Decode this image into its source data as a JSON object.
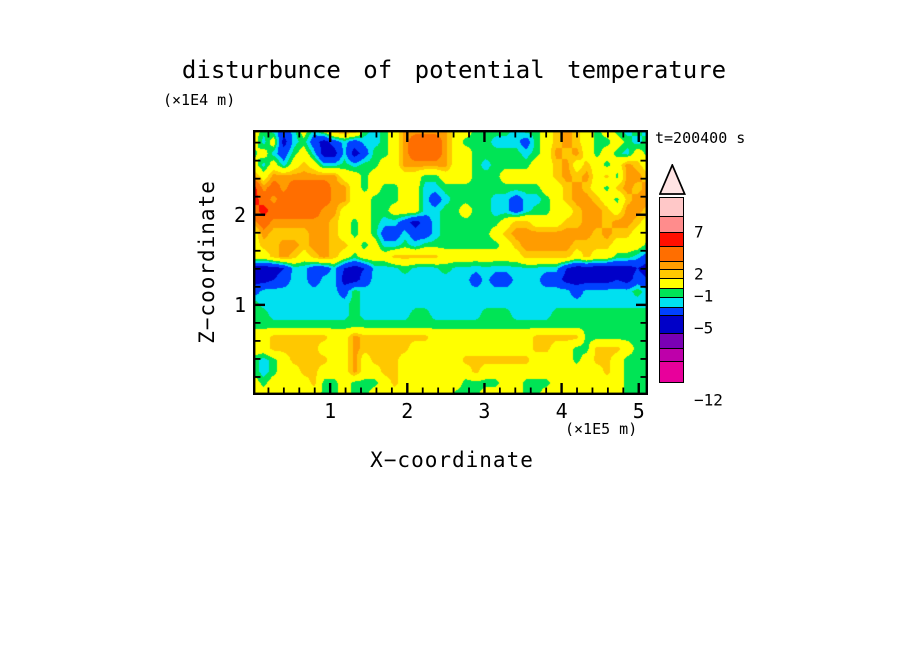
{
  "title": "disturbunce of potential temperature",
  "timestamp_label": "t=200400 s",
  "axes": {
    "x": {
      "title": "X−coordinate",
      "unit_label": "(×1E5 m)",
      "tick_labels": [
        "1",
        "2",
        "3",
        "4",
        "5"
      ],
      "tick_values": [
        1,
        2,
        3,
        4,
        5
      ],
      "range": [
        0,
        5.12
      ],
      "minor_step": 0.2
    },
    "z": {
      "title": "Z−coordinate",
      "unit_label": "(×1E4 m)",
      "tick_labels": [
        "1",
        "2"
      ],
      "tick_values": [
        1,
        2
      ],
      "range": [
        0,
        2.94
      ],
      "minor_step": 0.2
    }
  },
  "legend": {
    "arrow_color": "#FFE3E3",
    "segments": [
      {
        "color": "#FFC8C8",
        "height": 20
      },
      {
        "color": "#FF8C8C",
        "height": 18
      },
      {
        "color": "#FF0F00",
        "height": 15
      },
      {
        "color": "#FF6E00",
        "height": 17
      },
      {
        "color": "#FF9C00",
        "height": 10
      },
      {
        "color": "#FFC800",
        "height": 10
      },
      {
        "color": "#FFFF00",
        "height": 12
      },
      {
        "color": "#00E455",
        "height": 10
      },
      {
        "color": "#00E0F0",
        "height": 12
      },
      {
        "color": "#0041FF",
        "height": 10
      },
      {
        "color": "#0000C8",
        "height": 19
      },
      {
        "color": "#7A00B4",
        "height": 17
      },
      {
        "color": "#BE00AA",
        "height": 14
      },
      {
        "color": "#E8009B",
        "height": 22
      }
    ],
    "labels": [
      {
        "text": "7",
        "after_segment": 2
      },
      {
        "text": "2",
        "after_segment": 5
      },
      {
        "text": "−1",
        "after_segment": 7
      },
      {
        "text": "−5",
        "after_segment": 10
      },
      {
        "text": "−12",
        "after_segment": 14
      }
    ]
  },
  "chart_data": {
    "type": "filled_contour",
    "title": "disturbunce of potential temperature",
    "xlabel": "X−coordinate (×1E5 m)",
    "ylabel": "Z−coordinate (×1E4 m)",
    "annotation": "t=200400 s",
    "x_range": [
      0,
      5.12
    ],
    "z_range": [
      0,
      2.94
    ],
    "colorbar_labeled_levels": [
      7,
      2,
      -1,
      -5,
      -12
    ],
    "level_thresholds": [
      10,
      7,
      5,
      3,
      2,
      1,
      -1,
      -2,
      -3,
      -5,
      -7,
      -9,
      -10
    ],
    "level_colors": [
      "#FFC8C8",
      "#FF8C8C",
      "#FF0F00",
      "#FF6E00",
      "#FF9C00",
      "#FFC800",
      "#FFFF00",
      "#00E455",
      "#00E0F0",
      "#0041FF",
      "#0000C8",
      "#7A00B4",
      "#BE00AA",
      "#E8009B"
    ],
    "grid": {
      "cols": 40,
      "rows": 24,
      "orientation": "row 0 = top of plot (z = z_range max), col 0 = x = 0",
      "values": [
        [
          0,
          -1.5,
          -2.5,
          -4,
          -2.5,
          0,
          -2.5,
          0,
          2.5,
          2.5,
          2.5,
          -1.5,
          -2.5,
          -1.5,
          0,
          2.5,
          2.5,
          2.5,
          2.5,
          2.5,
          0,
          0,
          -1.5,
          -1.5,
          -1.5,
          -1.5,
          -2.5,
          -1.5,
          -1.5,
          0,
          1.5,
          2.5,
          1.5,
          0,
          -1.5,
          0,
          -1.5,
          -2.5,
          -1.5,
          -2.5
        ],
        [
          0,
          -2.5,
          0,
          -6,
          -2.5,
          -1.5,
          -4,
          -6,
          -4,
          -2.5,
          -4,
          -2.5,
          -2.5,
          -1.5,
          0,
          2.5,
          4,
          4,
          4,
          2.5,
          0,
          -1.5,
          -1.5,
          -1.5,
          -2.5,
          -2.5,
          -2.5,
          -4,
          -1.5,
          0,
          1.5,
          2.5,
          1.5,
          0,
          -1.5,
          -1.5,
          0,
          -1.5,
          -2.5,
          -1.5
        ],
        [
          -1.5,
          0,
          -2.5,
          -4,
          -1.5,
          0,
          -2.5,
          -6,
          -6,
          -2.5,
          -6,
          -4,
          -1.5,
          -1.5,
          0,
          2.5,
          4,
          4,
          4,
          2.5,
          0,
          0,
          -1.5,
          -1.5,
          -1.5,
          -1.5,
          -1.5,
          -2.5,
          -1.5,
          0,
          2.5,
          1.5,
          2.5,
          0,
          -1.5,
          0,
          -1.5,
          -2.5,
          0,
          -1.5
        ],
        [
          0,
          -2.5,
          0,
          -2.5,
          0,
          1.5,
          0,
          -2.5,
          -2.5,
          -1.5,
          -2.5,
          -1.5,
          -1.5,
          0,
          0,
          2.5,
          2.5,
          2.5,
          2.5,
          2.5,
          0,
          0,
          -1.5,
          -2.5,
          -1.5,
          -1.5,
          -1.5,
          -1.5,
          0,
          0,
          1.5,
          2.5,
          0,
          1.5,
          0,
          -1.5,
          0,
          2.5,
          1.5,
          0
        ],
        [
          2.5,
          0,
          2.5,
          2.5,
          2.5,
          2.5,
          2.5,
          2.5,
          2.5,
          0,
          0,
          -1.5,
          0,
          0,
          0,
          0,
          0,
          -1.5,
          -1.5,
          0,
          0,
          0,
          -1.5,
          -1.5,
          -1.5,
          0,
          0,
          0,
          0,
          0,
          1.5,
          2.5,
          1.5,
          2.5,
          0,
          1.5,
          -1.5,
          2.5,
          2.5,
          1.5
        ],
        [
          6,
          2.5,
          4,
          2.5,
          4,
          4,
          4,
          4,
          2.5,
          2.5,
          0,
          -1.5,
          0,
          -1.5,
          -1.5,
          0,
          0,
          -2.5,
          -2.5,
          -1.5,
          -1.5,
          -1.5,
          -1.5,
          -1.5,
          -1.5,
          -1.5,
          -1.5,
          -1.5,
          -1.5,
          0,
          0,
          1.5,
          2.5,
          1.5,
          0,
          -1.5,
          1.5,
          2.5,
          1.5,
          2.5
        ],
        [
          6,
          4,
          2.5,
          4,
          4,
          4,
          4,
          4,
          2.5,
          2.5,
          0,
          0,
          -1.5,
          -1.5,
          -1.5,
          0,
          0,
          -2.5,
          -4,
          -2.5,
          -1.5,
          -1.5,
          -1.5,
          -1.5,
          -2.5,
          -2.5,
          -4,
          -2.5,
          -2.5,
          -1.5,
          0,
          1.5,
          2.5,
          2.5,
          1.5,
          0,
          -1.5,
          1.5,
          2.5,
          2.5
        ],
        [
          4,
          6,
          4,
          4,
          4,
          4,
          4,
          2.5,
          2.5,
          0,
          0,
          0,
          -1.5,
          -1.5,
          0,
          0,
          0,
          -2.5,
          -2.5,
          -1.5,
          -1.5,
          0,
          -1.5,
          -1.5,
          -2.5,
          -2.5,
          -4,
          -2.5,
          -1.5,
          -1.5,
          0,
          0,
          1.5,
          2.5,
          2.5,
          1.5,
          0,
          2.5,
          2.5,
          1.5
        ],
        [
          2.5,
          4,
          2.5,
          2.5,
          2.5,
          2.5,
          2.5,
          2.5,
          1.5,
          0,
          -1.5,
          0,
          -1.5,
          -2.5,
          -2.5,
          -4,
          -6,
          -4,
          -2.5,
          -1.5,
          -1.5,
          -1.5,
          -1.5,
          -1.5,
          -1.5,
          0,
          1.5,
          1.5,
          0,
          0,
          0,
          1.5,
          1.5,
          2.5,
          2.5,
          1.5,
          2.5,
          2.5,
          1.5,
          0
        ],
        [
          0,
          2.5,
          1.5,
          1.5,
          1.5,
          1.5,
          2.5,
          2.5,
          1.5,
          0,
          -1.5,
          0,
          -1.5,
          -4,
          -4,
          -2.5,
          -4,
          -4,
          -2.5,
          -1.5,
          -1.5,
          -1.5,
          -1.5,
          -1.5,
          0,
          1.5,
          2.5,
          2.5,
          2.5,
          2.5,
          2.5,
          2.5,
          2.5,
          2.5,
          1.5,
          2.5,
          1.5,
          1.5,
          0,
          0
        ],
        [
          0,
          1.5,
          1.5,
          2.5,
          2.5,
          1.5,
          2.5,
          2.5,
          1.5,
          1.5,
          0,
          -1.5,
          0,
          -2.5,
          -2.5,
          -1.5,
          -2.5,
          -1.5,
          -1.5,
          -1.5,
          -1.5,
          -1.5,
          -1.5,
          -1.5,
          -1.5,
          0,
          1.5,
          2.5,
          2.5,
          2.5,
          2.5,
          2.5,
          1.5,
          1.5,
          1.5,
          1.5,
          0,
          0,
          0,
          -1.5
        ],
        [
          0,
          0,
          1.5,
          2.5,
          1.5,
          0,
          1.5,
          2.5,
          1.5,
          0,
          -1.5,
          0,
          0,
          0,
          1.5,
          1.5,
          1.5,
          1.5,
          1.5,
          0,
          0,
          0,
          0,
          0,
          0,
          0,
          0,
          1.5,
          1.5,
          1.5,
          1.5,
          1.5,
          0,
          1.5,
          0,
          0,
          -1.5,
          -1.5,
          -2.5,
          -4
        ],
        [
          -6,
          -6,
          -6,
          -5,
          -2.5,
          -2.5,
          -4,
          -4,
          -2.5,
          -5,
          -6,
          -5,
          -2.5,
          -2.5,
          -2.2,
          -1.5,
          -2.2,
          -2.5,
          -2.2,
          -1.5,
          -2.2,
          -2.2,
          -2.5,
          -2.2,
          -2.5,
          -2.5,
          -2.2,
          -2.2,
          -2.2,
          -2.5,
          -2.5,
          -5,
          -6,
          -6,
          -6,
          -6,
          -6,
          -6,
          -5,
          -6
        ],
        [
          -6,
          -6,
          -5,
          -4,
          -2.5,
          -2.5,
          -4,
          -2.5,
          -2.5,
          -6,
          -6,
          -4,
          -2.5,
          -2.5,
          -2.5,
          -2.5,
          -2.5,
          -2.5,
          -2.5,
          -2.5,
          -2.5,
          -2.5,
          -4,
          -2.5,
          -4,
          -4,
          -2.5,
          -2.5,
          -2.5,
          -4,
          -4,
          -6,
          -6,
          -6,
          -6,
          -6,
          -5,
          -6,
          -4,
          -5
        ],
        [
          -4,
          -2.5,
          -2.5,
          -2.5,
          -2.5,
          -2.5,
          -2.5,
          -2.5,
          -2.5,
          -4,
          -1.5,
          -2.5,
          -2.5,
          -2.5,
          -2.5,
          -2.5,
          -2.5,
          -2.5,
          -2.5,
          -2.5,
          -2.5,
          -2.5,
          -2.5,
          -2.5,
          -2.5,
          -2.5,
          -2.5,
          -2.5,
          -2.5,
          -2.5,
          -2.5,
          -2.5,
          -4,
          -2.5,
          -2.5,
          -2.5,
          -2.5,
          -2.5,
          -1.5,
          -2.5
        ],
        [
          -1.5,
          -2.5,
          -2.5,
          -2.5,
          -2.5,
          -2.5,
          -2.5,
          -2.5,
          -2.5,
          -2.5,
          -1.5,
          -2.5,
          -2.5,
          -2.5,
          -2.5,
          -2.5,
          -2.5,
          -2.5,
          -2.5,
          -2.5,
          -2.5,
          -2.5,
          -2.5,
          -2.5,
          -2.5,
          -2.5,
          -2.5,
          -2.5,
          -2.5,
          -2.5,
          -2.5,
          -2.5,
          -2.5,
          -2.5,
          -2.5,
          -2.5,
          -2.5,
          -2.5,
          -2.5,
          -2.5
        ],
        [
          -1.5,
          -1.5,
          -2.5,
          -2.5,
          -2.5,
          -2.5,
          -2.5,
          -2.5,
          -2.5,
          -2.5,
          -1.5,
          -2.5,
          -2.5,
          -2.5,
          -2.5,
          -2.5,
          -1.5,
          -1.5,
          -2.5,
          -2.5,
          -2.5,
          -2.5,
          -2.5,
          -1.5,
          -1.5,
          -1.5,
          -2.5,
          -2.5,
          -2.5,
          -2.5,
          -1.5,
          -1.5,
          -1.5,
          -1.5,
          -1.5,
          -1.5,
          -1.5,
          -1.5,
          -1.5,
          -1.5
        ],
        [
          -1.5,
          -1.5,
          -1.5,
          -1.5,
          -1.5,
          -1.5,
          -1.5,
          -1.5,
          -1.5,
          -1.5,
          -1.5,
          -1.5,
          -1.5,
          -1.5,
          -1.5,
          -1.5,
          -1.5,
          -1.5,
          -1.5,
          -1.5,
          -1.5,
          -1.5,
          -1.5,
          -1.5,
          -1.5,
          -1.5,
          -1.5,
          -1.5,
          -1.5,
          -1.5,
          -1.5,
          -1.5,
          -1.5,
          -1.5,
          -1.5,
          -1.5,
          -1.5,
          -1.5,
          -1.5,
          -1.5
        ],
        [
          0,
          0,
          1.5,
          1.5,
          1.5,
          1.5,
          1.5,
          1.5,
          0,
          0,
          2.5,
          1.5,
          1.5,
          1.5,
          1.5,
          1.5,
          1.5,
          1.5,
          0,
          0,
          0,
          0,
          0,
          0,
          0,
          0,
          0,
          0,
          1.5,
          1.5,
          1.5,
          1.5,
          1.5,
          -1.5,
          -1.5,
          -1.5,
          -1.5,
          -1.5,
          -1.5,
          -1.5
        ],
        [
          0,
          0,
          1.5,
          1.5,
          1.5,
          1.5,
          1.5,
          0,
          0,
          0,
          2.5,
          1.5,
          1.5,
          1.5,
          1.5,
          1.5,
          0,
          0,
          0,
          0,
          0,
          0,
          0,
          0,
          0,
          0,
          0,
          0,
          1.5,
          1.5,
          0,
          0,
          -1.5,
          -1.5,
          1.5,
          1.5,
          1.5,
          0,
          -1.5,
          -1.5
        ],
        [
          -1.5,
          -2.5,
          -1.5,
          0,
          1.5,
          1.5,
          1.5,
          1.5,
          0,
          0,
          2.5,
          0,
          1.5,
          1.5,
          1.5,
          0,
          0,
          0,
          0,
          0,
          0,
          1.5,
          1.5,
          1.5,
          1.5,
          1.5,
          1.5,
          1.5,
          0,
          0,
          0,
          0,
          -1.5,
          0,
          1.5,
          1.5,
          0,
          -1.5,
          -1.5,
          -1.5
        ],
        [
          -1.5,
          -2.5,
          -1.5,
          0,
          0,
          1.5,
          1.5,
          0,
          0,
          0,
          2.5,
          0,
          0,
          1.5,
          1.5,
          0,
          0,
          0,
          0,
          0,
          0,
          0,
          1.5,
          0,
          0,
          0,
          0,
          0,
          0,
          0,
          0,
          0,
          0,
          0,
          0,
          1.5,
          0,
          -1.5,
          -1.5,
          -1.5
        ],
        [
          0,
          -1.5,
          0,
          0,
          0,
          0,
          1.5,
          -1.5,
          -1.5,
          0,
          -1.5,
          -1.5,
          -1.5,
          0,
          1.5,
          0,
          0,
          0,
          0,
          0,
          0,
          -1.5,
          -1.5,
          -1.5,
          -1.5,
          0,
          0,
          -1.5,
          -1.5,
          -1.5,
          0,
          0,
          0,
          0,
          0,
          0,
          0,
          -1.5,
          -1.5,
          -1.5
        ],
        [
          0,
          0,
          0,
          0,
          0,
          0,
          0,
          -1.5,
          -1.5,
          0,
          -1.5,
          -1.5,
          0,
          0,
          0,
          0,
          0,
          0,
          0,
          0,
          -1.5,
          -1.5,
          -1.5,
          0,
          0,
          0,
          0,
          -1.5,
          -1.5,
          0,
          0,
          0,
          0,
          0,
          0,
          0,
          0,
          -1.5,
          -1.5,
          -1.5
        ]
      ]
    }
  }
}
